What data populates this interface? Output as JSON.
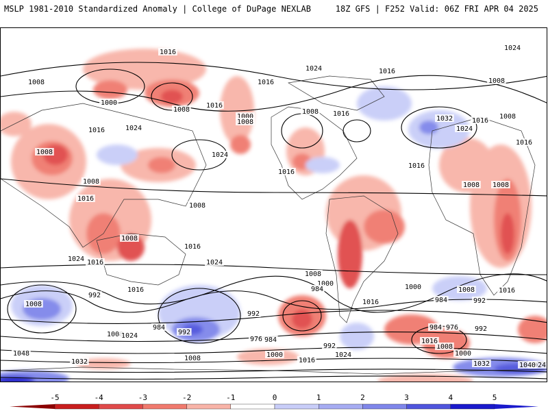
{
  "header": {
    "left": "MSLP 1981-2010 Standardized Anomaly | College of DuPage NEXLAB",
    "right": "18Z GFS | F252 Valid: 06Z FRI APR 04 2025"
  },
  "colorbar": {
    "ticks": [
      "-5",
      "-4",
      "-3",
      "-2",
      "-1",
      "0",
      "1",
      "2",
      "3",
      "4",
      "5"
    ],
    "colors": [
      "#8b0000",
      "#c81e1e",
      "#e04a4a",
      "#f07a6e",
      "#f8b4a8",
      "#ffffff",
      "#c8cdf8",
      "#a6acf2",
      "#7f86ea",
      "#4f55dd",
      "#1a1acc"
    ]
  },
  "map": {
    "isobar_labels": [
      "1016",
      "1008",
      "1000",
      "1008",
      "1024",
      "1016",
      "1016",
      "1024",
      "1016",
      "1000",
      "1008",
      "1008",
      "1008",
      "1016",
      "1032",
      "1024",
      "1016",
      "1008",
      "1016",
      "1024",
      "1016",
      "1008",
      "1008",
      "1024",
      "1008",
      "1016",
      "1016",
      "1008",
      "1016",
      "1008",
      "1008",
      "1016",
      "1016",
      "1024",
      "1024",
      "1008",
      "1000",
      "984",
      "992",
      "1016",
      "1008",
      "984",
      "992",
      "1000",
      "1008",
      "1016",
      "976",
      "984",
      "992",
      "1000",
      "1008",
      "1016",
      "1024",
      "1032",
      "1040",
      "992",
      "1016",
      "1008",
      "1024",
      "984",
      "992",
      "976",
      "984",
      "992",
      "1000",
      "1008",
      "1016",
      "1024",
      "1048",
      "1032"
    ]
  }
}
